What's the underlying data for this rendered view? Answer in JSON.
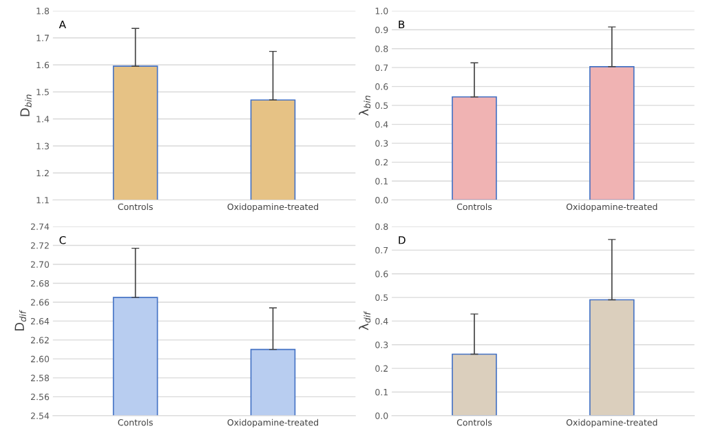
{
  "chart_data": [
    {
      "type": "bar",
      "title": "A",
      "ylabel": "D$_{bin}$",
      "categories": [
        "Controls",
        "Oxidopamine-treated"
      ],
      "values": [
        1.595,
        1.47
      ],
      "errors": [
        [
          1.595,
          1.735
        ],
        [
          1.47,
          1.65
        ]
      ],
      "color": "#e6c285",
      "ylim": [
        1.1,
        1.8
      ],
      "yticks": [
        1.1,
        1.2,
        1.3,
        1.4,
        1.5,
        1.6,
        1.7,
        1.8
      ],
      "grid": "y"
    },
    {
      "type": "bar",
      "title": "B",
      "ylabel": "λ$_{bin}$",
      "categories": [
        "Controls",
        "Oxidopamine-treated"
      ],
      "values": [
        0.545,
        0.705
      ],
      "errors": [
        [
          0.545,
          0.725
        ],
        [
          0.705,
          0.915
        ]
      ],
      "color": "#f0b3b3",
      "ylim": [
        0,
        1.0
      ],
      "yticks": [
        {
          "value": 0,
          "label": "0.0"
        },
        0.1,
        0.2,
        0.3,
        0.4,
        0.5,
        0.6,
        0.7,
        0.8,
        0.9,
        {
          "value": 1.0,
          "label": "1.0"
        }
      ],
      "grid": "y"
    },
    {
      "type": "bar",
      "title": "C",
      "ylabel": "D$_{dif}$",
      "categories": [
        "Controls",
        "Oxidopamine-treated"
      ],
      "values": [
        2.665,
        2.61
      ],
      "errors": [
        [
          2.665,
          2.717
        ],
        [
          2.61,
          2.654
        ]
      ],
      "color": "#b8cdf0",
      "ylim": [
        2.54,
        2.74
      ],
      "yticks": [
        2.54,
        2.56,
        2.58,
        {
          "value": 2.6,
          "label": "2.60"
        },
        2.62,
        2.64,
        2.66,
        2.68,
        {
          "value": 2.7,
          "label": "2.70"
        },
        2.72,
        2.74
      ],
      "grid": "y"
    },
    {
      "type": "bar",
      "title": "D",
      "ylabel": "λ$_{dif}$",
      "categories": [
        "Controls",
        "Oxidopamine-treated"
      ],
      "values": [
        0.26,
        0.49
      ],
      "errors": [
        [
          0.26,
          0.43
        ],
        [
          0.49,
          0.745
        ]
      ],
      "color": "#dbcfbd",
      "ylim": [
        0,
        0.8
      ],
      "yticks": [
        {
          "value": 0,
          "label": "0.0"
        },
        0.1,
        0.2,
        0.3,
        0.4,
        0.5,
        0.6,
        0.7,
        0.8
      ],
      "grid": "y"
    }
  ]
}
